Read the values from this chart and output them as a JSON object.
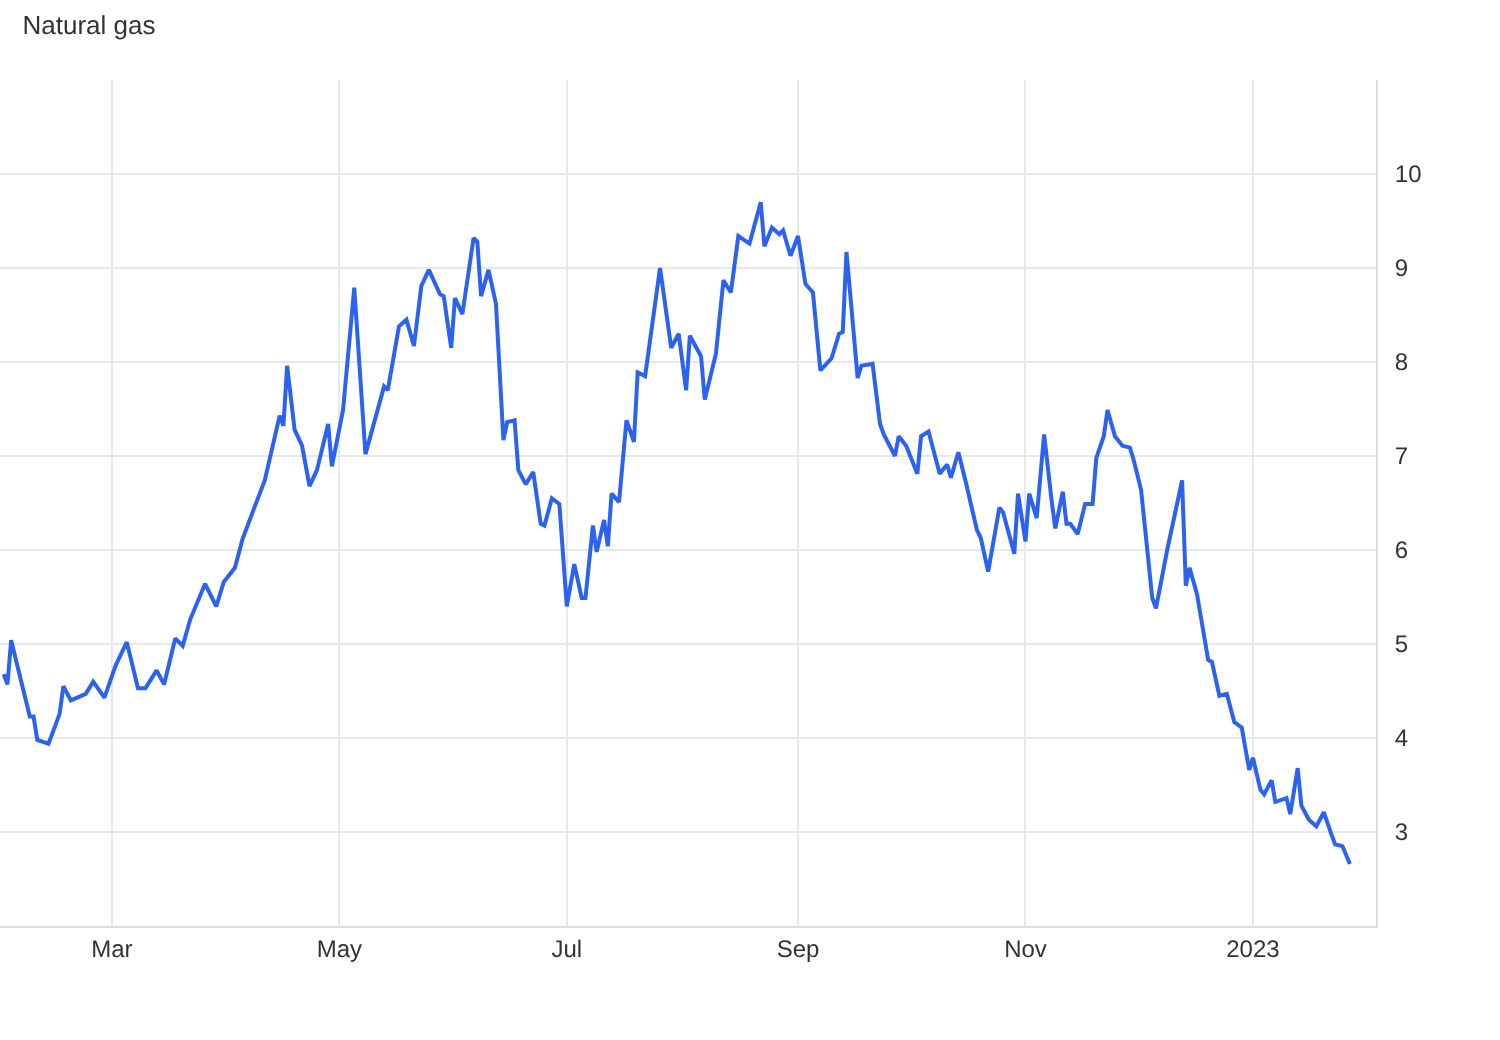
{
  "chart_data": {
    "type": "line",
    "title": "Natural gas",
    "x": [
      "2022-01-31",
      "2022-02-01",
      "2022-02-02",
      "2022-02-05",
      "2022-02-07",
      "2022-02-08",
      "2022-02-09",
      "2022-02-12",
      "2022-02-14",
      "2022-02-15",
      "2022-02-16",
      "2022-02-18",
      "2022-02-22",
      "2022-02-24",
      "2022-02-27",
      "2022-03-02",
      "2022-03-05",
      "2022-03-08",
      "2022-03-10",
      "2022-03-13",
      "2022-03-15",
      "2022-03-18",
      "2022-03-20",
      "2022-03-22",
      "2022-03-26",
      "2022-03-29",
      "2022-03-31",
      "2022-04-03",
      "2022-04-05",
      "2022-04-08",
      "2022-04-11",
      "2022-04-15",
      "2022-04-16",
      "2022-04-17",
      "2022-04-19",
      "2022-04-21",
      "2022-04-23",
      "2022-04-25",
      "2022-04-28",
      "2022-04-29",
      "2022-05-02",
      "2022-05-05",
      "2022-05-08",
      "2022-05-13",
      "2022-05-14",
      "2022-05-17",
      "2022-05-19",
      "2022-05-21",
      "2022-05-23",
      "2022-05-25",
      "2022-05-28",
      "2022-05-29",
      "2022-05-31",
      "2022-06-01",
      "2022-06-03",
      "2022-06-06",
      "2022-06-07",
      "2022-06-08",
      "2022-06-10",
      "2022-06-12",
      "2022-06-14",
      "2022-06-15",
      "2022-06-17",
      "2022-06-18",
      "2022-06-20",
      "2022-06-22",
      "2022-06-24",
      "2022-06-25",
      "2022-06-27",
      "2022-06-29",
      "2022-07-01",
      "2022-07-03",
      "2022-07-05",
      "2022-07-06",
      "2022-07-08",
      "2022-07-09",
      "2022-07-11",
      "2022-07-12",
      "2022-07-13",
      "2022-07-15",
      "2022-07-17",
      "2022-07-19",
      "2022-07-20",
      "2022-07-22",
      "2022-07-26",
      "2022-07-29",
      "2022-07-31",
      "2022-08-02",
      "2022-08-03",
      "2022-08-06",
      "2022-08-07",
      "2022-08-10",
      "2022-08-12",
      "2022-08-14",
      "2022-08-16",
      "2022-08-19",
      "2022-08-22",
      "2022-08-23",
      "2022-08-25",
      "2022-08-27",
      "2022-08-28",
      "2022-08-30",
      "2022-09-01",
      "2022-09-03",
      "2022-09-05",
      "2022-09-07",
      "2022-09-10",
      "2022-09-12",
      "2022-09-13",
      "2022-09-14",
      "2022-09-17",
      "2022-09-18",
      "2022-09-21",
      "2022-09-23",
      "2022-09-24",
      "2022-09-27",
      "2022-09-28",
      "2022-09-30",
      "2022-10-03",
      "2022-10-04",
      "2022-10-06",
      "2022-10-09",
      "2022-10-11",
      "2022-10-12",
      "2022-10-14",
      "2022-10-16",
      "2022-10-19",
      "2022-10-20",
      "2022-10-22",
      "2022-10-25",
      "2022-10-26",
      "2022-10-29",
      "2022-10-30",
      "2022-11-01",
      "2022-11-02",
      "2022-11-04",
      "2022-11-06",
      "2022-11-08",
      "2022-11-09",
      "2022-11-11",
      "2022-11-12",
      "2022-11-13",
      "2022-11-15",
      "2022-11-17",
      "2022-11-19",
      "2022-11-20",
      "2022-11-22",
      "2022-11-23",
      "2022-11-25",
      "2022-11-27",
      "2022-11-29",
      "2022-11-30",
      "2022-12-02",
      "2022-12-05",
      "2022-12-06",
      "2022-12-09",
      "2022-12-13",
      "2022-12-14",
      "2022-12-15",
      "2022-12-17",
      "2022-12-20",
      "2022-12-21",
      "2022-12-23",
      "2022-12-25",
      "2022-12-27",
      "2022-12-29",
      "2022-12-31",
      "2023-01-01",
      "2023-01-03",
      "2023-01-04",
      "2023-01-06",
      "2023-01-07",
      "2023-01-10",
      "2023-01-11",
      "2023-01-13",
      "2023-01-14",
      "2023-01-16",
      "2023-01-18",
      "2023-01-20",
      "2023-01-22",
      "2023-01-23",
      "2023-01-25",
      "2023-01-27"
    ],
    "series": [
      {
        "color": "#2b63f0",
        "values": [
          4.68,
          4.57,
          5.04,
          4.55,
          4.23,
          4.23,
          3.98,
          3.94,
          4.15,
          4.26,
          4.55,
          4.4,
          4.47,
          4.6,
          4.43,
          4.77,
          5.02,
          4.53,
          4.53,
          4.72,
          4.57,
          5.06,
          4.98,
          5.26,
          5.64,
          5.4,
          5.66,
          5.81,
          6.11,
          6.43,
          6.74,
          7.43,
          7.32,
          7.96,
          7.28,
          7.11,
          6.68,
          6.85,
          7.34,
          6.89,
          7.49,
          8.79,
          7.02,
          7.74,
          7.7,
          8.38,
          8.45,
          8.17,
          8.81,
          8.98,
          8.72,
          8.7,
          8.15,
          8.68,
          8.51,
          9.32,
          9.28,
          8.7,
          8.98,
          8.62,
          7.17,
          7.36,
          7.38,
          6.85,
          6.7,
          6.83,
          6.28,
          6.26,
          6.55,
          6.49,
          5.4,
          5.85,
          5.49,
          5.49,
          6.26,
          5.98,
          6.32,
          6.04,
          6.6,
          6.51,
          7.38,
          7.15,
          7.89,
          7.85,
          9.0,
          8.15,
          8.3,
          7.7,
          8.28,
          8.06,
          7.6,
          8.09,
          8.87,
          8.74,
          9.34,
          9.26,
          9.7,
          9.23,
          9.43,
          9.36,
          9.4,
          9.13,
          9.34,
          8.83,
          8.74,
          7.91,
          8.04,
          8.3,
          8.32,
          9.17,
          7.83,
          7.96,
          7.98,
          7.34,
          7.23,
          7.0,
          7.21,
          7.11,
          6.81,
          7.21,
          7.26,
          6.81,
          6.91,
          6.77,
          7.04,
          6.72,
          6.21,
          6.13,
          5.77,
          6.45,
          6.4,
          5.96,
          6.6,
          6.09,
          6.6,
          6.34,
          7.23,
          6.53,
          6.23,
          6.62,
          6.28,
          6.28,
          6.17,
          6.49,
          6.49,
          6.98,
          7.21,
          7.49,
          7.21,
          7.11,
          7.09,
          6.96,
          6.64,
          5.49,
          5.38,
          6.0,
          6.74,
          5.62,
          5.81,
          5.53,
          4.83,
          4.81,
          4.45,
          4.47,
          4.17,
          4.11,
          3.66,
          3.79,
          3.45,
          3.4,
          3.55,
          3.32,
          3.36,
          3.19,
          3.68,
          3.28,
          3.13,
          3.06,
          3.21,
          2.98,
          2.87,
          2.85,
          2.66
        ]
      }
    ],
    "xlim": [
      "2022-01-30",
      "2023-02-03"
    ],
    "xticks": [
      {
        "value": "2022-03-01",
        "label": "Mar"
      },
      {
        "value": "2022-05-01",
        "label": "May"
      },
      {
        "value": "2022-07-01",
        "label": "Jul"
      },
      {
        "value": "2022-09-01",
        "label": "Sep"
      },
      {
        "value": "2022-11-01",
        "label": "Nov"
      },
      {
        "value": "2023-01-01",
        "label": "2023"
      }
    ],
    "ylim": [
      2,
      11
    ],
    "yticks": [
      3,
      4,
      5,
      6,
      7,
      8,
      9,
      10
    ],
    "grid": true,
    "marker": "none",
    "line_style": "solid"
  }
}
